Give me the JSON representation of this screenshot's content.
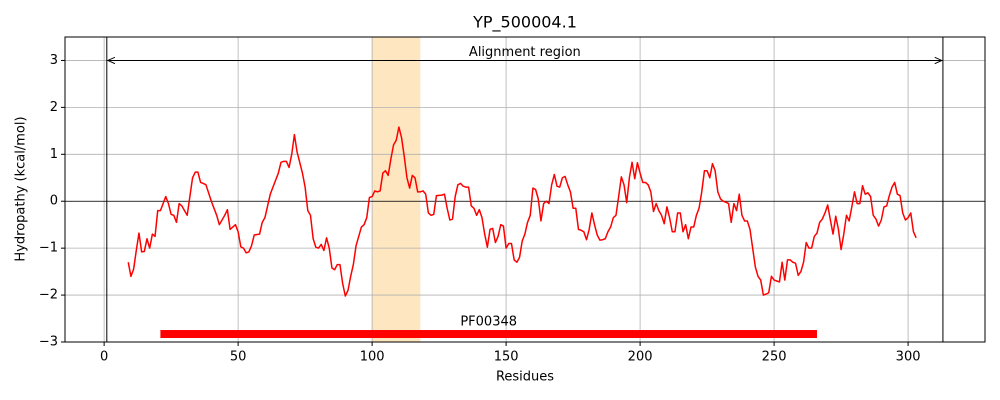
{
  "chart_data": {
    "type": "line",
    "title": "YP_500004.1",
    "x_label": "Residues",
    "y_label": "Hydropathy (kcal/mol)",
    "xlim": [
      -14.6,
      328.7
    ],
    "ylim": [
      -3,
      3.5
    ],
    "xticks": [
      0,
      50,
      100,
      150,
      200,
      250,
      300
    ],
    "yticks": [
      {
        "value": -3,
        "label": "−3"
      },
      {
        "value": -2,
        "label": "−2"
      },
      {
        "value": -1,
        "label": "−1"
      },
      0,
      1,
      2,
      3
    ],
    "grid": true,
    "hline": 0,
    "color": "#ff0000",
    "x": [
      9,
      10,
      11,
      12,
      13,
      14,
      15,
      16,
      17,
      18,
      19,
      20,
      21,
      22,
      23,
      24,
      25,
      26,
      27,
      28,
      29,
      30,
      31,
      32,
      33,
      34,
      35,
      36,
      37,
      38,
      40,
      42,
      43,
      45,
      46,
      47,
      49,
      50,
      51,
      52,
      53,
      54,
      55,
      56,
      58,
      59,
      60,
      62,
      63,
      65,
      66,
      67,
      68,
      69,
      70,
      71,
      72,
      74,
      75,
      76,
      77,
      78,
      79,
      80,
      81,
      82,
      83,
      84,
      85,
      86,
      87,
      88,
      89,
      90,
      91,
      92,
      93,
      94,
      95,
      96,
      97,
      98,
      99,
      100,
      101,
      102,
      103,
      104,
      105,
      106,
      107,
      108,
      109,
      110,
      111,
      112,
      113,
      114,
      115,
      116,
      117,
      118,
      119,
      120,
      121,
      122,
      123,
      124,
      126,
      127,
      128,
      129,
      130,
      131,
      132,
      133,
      134,
      135,
      136,
      137,
      138,
      139,
      140,
      141,
      142,
      143,
      144,
      145,
      146,
      147,
      148,
      149,
      150,
      151,
      152,
      153,
      154,
      155,
      156,
      157,
      158,
      159,
      160,
      161,
      162,
      163,
      164,
      165,
      166,
      167,
      168,
      169,
      170,
      171,
      172,
      173,
      174,
      175,
      176,
      177,
      178,
      179,
      180,
      181,
      182,
      183,
      184,
      185,
      186,
      187,
      188,
      189,
      190,
      191,
      192,
      193,
      194,
      195,
      196,
      197,
      198,
      199,
      200,
      201,
      202,
      203,
      204,
      205,
      206,
      207,
      208,
      209,
      210,
      211,
      212,
      213,
      214,
      215,
      216,
      217,
      218,
      219,
      220,
      221,
      222,
      223,
      224,
      225,
      226,
      227,
      228,
      229,
      230,
      231,
      232,
      233,
      234,
      235,
      236,
      237,
      238,
      239,
      240,
      241,
      242,
      243,
      244,
      245,
      246,
      247,
      248,
      249,
      250,
      251,
      252,
      253,
      254,
      255,
      256,
      257,
      258,
      259,
      260,
      261,
      262,
      263,
      264,
      265,
      266,
      267,
      268,
      269,
      270,
      271,
      272,
      273,
      274,
      275,
      276,
      277,
      278,
      279,
      280,
      281,
      282,
      283,
      284,
      285,
      286,
      287,
      288,
      289,
      290,
      291,
      292,
      293,
      294,
      295,
      296,
      297,
      298,
      299,
      300,
      301,
      302,
      303
    ],
    "values": [
      -1.3,
      -1.6,
      -1.45,
      -1.05,
      -0.68,
      -1.08,
      -1.07,
      -0.8,
      -1.0,
      -0.7,
      -0.75,
      -0.2,
      -0.2,
      -0.05,
      0.1,
      -0.05,
      -0.28,
      -0.3,
      -0.45,
      -0.05,
      -0.1,
      -0.2,
      -0.3,
      0.1,
      0.5,
      0.62,
      0.62,
      0.4,
      0.38,
      0.35,
      0.0,
      -0.3,
      -0.5,
      -0.3,
      -0.18,
      -0.6,
      -0.5,
      -0.65,
      -0.97,
      -1.0,
      -1.1,
      -1.08,
      -0.95,
      -0.72,
      -0.7,
      -0.45,
      -0.35,
      0.15,
      0.3,
      0.6,
      0.83,
      0.85,
      0.85,
      0.72,
      1.0,
      1.42,
      1.05,
      0.6,
      0.3,
      -0.2,
      -0.3,
      -0.8,
      -0.98,
      -1.0,
      -0.92,
      -1.05,
      -0.78,
      -1.0,
      -1.42,
      -1.46,
      -1.35,
      -1.35,
      -1.75,
      -2.02,
      -1.9,
      -1.6,
      -1.35,
      -0.95,
      -0.75,
      -0.55,
      -0.5,
      -0.35,
      0.08,
      0.1,
      0.22,
      0.2,
      0.22,
      0.6,
      0.65,
      0.55,
      0.9,
      1.2,
      1.3,
      1.58,
      1.35,
      0.95,
      0.5,
      0.28,
      0.55,
      0.5,
      0.2,
      0.2,
      0.22,
      0.15,
      -0.25,
      -0.3,
      -0.28,
      0.12,
      0.13,
      0.15,
      -0.15,
      -0.4,
      -0.38,
      0.1,
      0.35,
      0.38,
      0.32,
      0.3,
      0.3,
      -0.1,
      -0.15,
      -0.3,
      -0.18,
      -0.35,
      -0.7,
      -0.98,
      -0.6,
      -0.58,
      -0.88,
      -0.75,
      -0.5,
      -0.53,
      -1.0,
      -0.9,
      -0.9,
      -1.25,
      -1.3,
      -1.2,
      -0.85,
      -0.7,
      -0.45,
      -0.3,
      0.28,
      0.25,
      0.05,
      -0.42,
      -0.05,
      0.0,
      -0.05,
      0.35,
      0.57,
      0.32,
      0.3,
      0.5,
      0.53,
      0.35,
      0.2,
      -0.15,
      -0.15,
      -0.6,
      -0.62,
      -0.65,
      -0.82,
      -0.6,
      -0.25,
      -0.5,
      -0.72,
      -0.83,
      -0.82,
      -0.8,
      -0.65,
      -0.55,
      -0.35,
      -0.3,
      0.1,
      0.52,
      0.35,
      -0.03,
      0.5,
      0.83,
      0.48,
      0.82,
      0.6,
      0.4,
      0.4,
      0.35,
      0.2,
      -0.22,
      -0.05,
      -0.2,
      -0.3,
      -0.48,
      -0.12,
      -0.35,
      -0.65,
      -0.65,
      -0.25,
      -0.25,
      -0.65,
      -0.5,
      -0.8,
      -0.55,
      -0.55,
      -0.3,
      -0.15,
      0.2,
      0.65,
      0.65,
      0.5,
      0.8,
      0.65,
      0.2,
      0.05,
      0.0,
      -0.02,
      -0.05,
      -0.45,
      -0.05,
      -0.2,
      0.15,
      -0.3,
      -0.42,
      -0.42,
      -0.6,
      -1.0,
      -1.4,
      -1.6,
      -1.68,
      -2.0,
      -1.98,
      -1.95,
      -1.6,
      -1.68,
      -1.7,
      -1.72,
      -1.3,
      -1.68,
      -1.25,
      -1.25,
      -1.3,
      -1.32,
      -1.58,
      -1.5,
      -1.3,
      -0.88,
      -1.0,
      -1.0,
      -0.75,
      -0.68,
      -0.45,
      -0.38,
      -0.25,
      -0.08,
      -0.4,
      -0.7,
      -0.32,
      -0.6,
      -1.03,
      -0.7,
      -0.3,
      -0.42,
      -0.12,
      0.2,
      -0.05,
      -0.05,
      0.33,
      0.15,
      0.18,
      0.1,
      -0.3,
      -0.38,
      -0.53,
      -0.4,
      -0.12,
      -0.1,
      0.12,
      0.3,
      0.4,
      0.15,
      0.12,
      -0.25,
      -0.4,
      -0.35,
      -0.25,
      -0.65,
      -0.78
    ],
    "alignment_region": {
      "label": "Alignment region",
      "start": 1,
      "end": 313,
      "y": 3
    },
    "highlight": {
      "start": 100,
      "end": 118,
      "color": "#fee6c0"
    },
    "domains": [
      {
        "label": "PF00348",
        "start": 21,
        "end": 266,
        "y": -2.83,
        "color": "#ff0000"
      }
    ]
  }
}
